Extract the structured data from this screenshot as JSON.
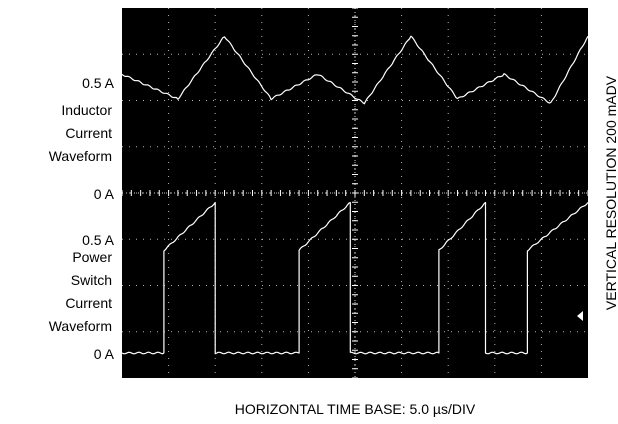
{
  "chart_data": {
    "type": "line",
    "y_tick_labels": {
      "inductor_zero": "0 A",
      "inductor_half": "0.5 A",
      "switch_zero": "0 A",
      "switch_half": "0.5 A"
    },
    "series_labels": {
      "inductor": [
        "Inductor",
        "Current",
        "Waveform"
      ],
      "switch": [
        "Power",
        "Switch",
        "Current",
        "Waveform"
      ]
    },
    "xlabel": "HORIZONTAL TIME BASE: 5.0 µs/DIV",
    "right_label": "VERTICAL RESOLUTION 200 mADV",
    "x_divisions": 10,
    "y_divisions": 8,
    "x_unit": "div",
    "y_unit": "A",
    "grid": true,
    "inductor_current": {
      "x": [
        0,
        1.2,
        2.2,
        3.2,
        4.2,
        5.2,
        6.2,
        7.2,
        8.2,
        9.2,
        10
      ],
      "y": [
        0.53,
        0.42,
        0.7,
        0.42,
        0.53,
        0.4,
        0.7,
        0.42,
        0.53,
        0.4,
        0.7
      ]
    },
    "switch_current": {
      "x": [
        0,
        0.9,
        0.9,
        2.0,
        2.0,
        3.8,
        3.8,
        4.9,
        4.9,
        6.8,
        6.8,
        7.8,
        7.8,
        8.7,
        8.7,
        10
      ],
      "y": [
        0,
        0,
        0.45,
        0.66,
        0,
        0,
        0.45,
        0.66,
        0,
        0,
        0.45,
        0.66,
        0,
        0,
        0.45,
        0.66
      ]
    },
    "colors": {
      "background": "#000000",
      "trace": "#ffffff",
      "grid": "#ffffff"
    }
  }
}
